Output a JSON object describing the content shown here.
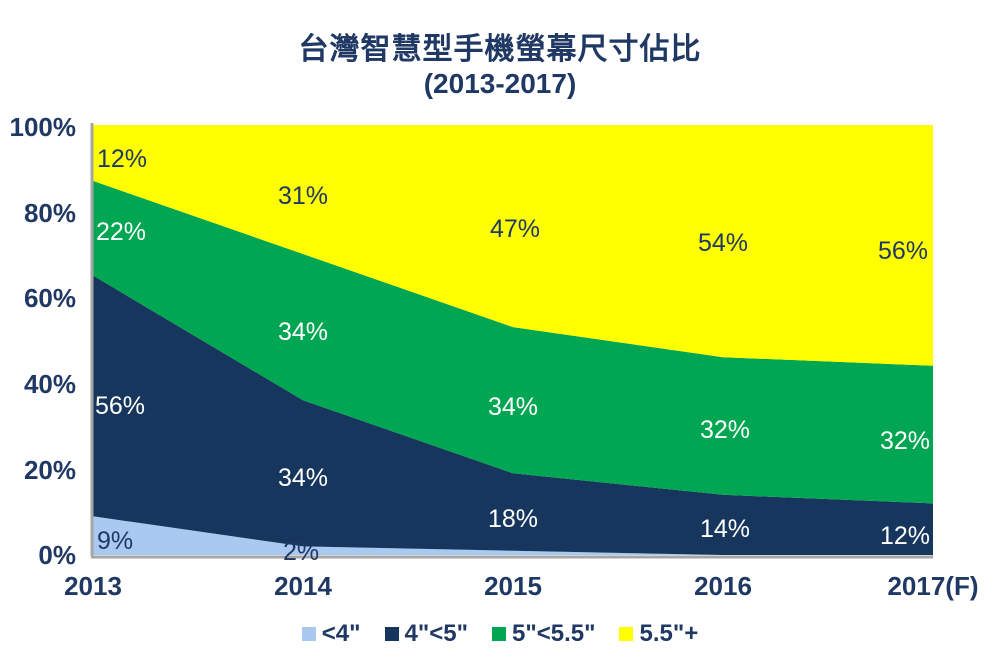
{
  "title": {
    "line1": "台灣智慧型手機螢幕尺寸佔比",
    "line2": "(2013-2017)"
  },
  "colors": {
    "series_lt4": "#A9C9F0",
    "series_4to5": "#17365D",
    "series_5to55": "#00A651",
    "series_55plus": "#FFFF00",
    "text_navy": "#1F3864",
    "label_white": "#FFFFFF",
    "axis_line_gray": "#A6A6A6",
    "background": "#FFFFFF"
  },
  "chart_data": {
    "type": "area",
    "stacked": true,
    "percent_stacked": true,
    "title": "台灣智慧型手機螢幕尺寸佔比 (2013-2017)",
    "categories": [
      "2013",
      "2014",
      "2015",
      "2016",
      "2017(F)"
    ],
    "series": [
      {
        "name": "<4\"",
        "color": "#A9C9F0",
        "values": [
          9,
          2,
          1,
          0,
          0
        ]
      },
      {
        "name": "4\"<5\"",
        "color": "#17365D",
        "values": [
          56,
          34,
          18,
          14,
          12
        ]
      },
      {
        "name": "5\"<5.5\"",
        "color": "#00A651",
        "values": [
          22,
          34,
          34,
          32,
          32
        ]
      },
      {
        "name": "5.5\"+",
        "color": "#FFFF00",
        "values": [
          12,
          31,
          47,
          54,
          56
        ]
      }
    ],
    "xlabel": "",
    "ylabel": "",
    "ylim": [
      0,
      100
    ],
    "ytick_labels": [
      "0%",
      "20%",
      "40%",
      "60%",
      "80%",
      "100%"
    ],
    "grid": false,
    "legend_position": "bottom"
  },
  "y_axis": {
    "labels": [
      "100%",
      "80%",
      "60%",
      "40%",
      "20%",
      "0%"
    ]
  },
  "area_labels": [
    {
      "text": "12%"
    },
    {
      "text": "22%"
    },
    {
      "text": "56%"
    },
    {
      "text": "9%"
    },
    {
      "text": "31%"
    },
    {
      "text": "34%"
    },
    {
      "text": "34%"
    },
    {
      "text": "2%"
    },
    {
      "text": "47%"
    },
    {
      "text": "34%"
    },
    {
      "text": "18%"
    },
    {
      "text": "54%"
    },
    {
      "text": "32%"
    },
    {
      "text": "14%"
    },
    {
      "text": "56%"
    },
    {
      "text": "32%"
    },
    {
      "text": "12%"
    }
  ]
}
